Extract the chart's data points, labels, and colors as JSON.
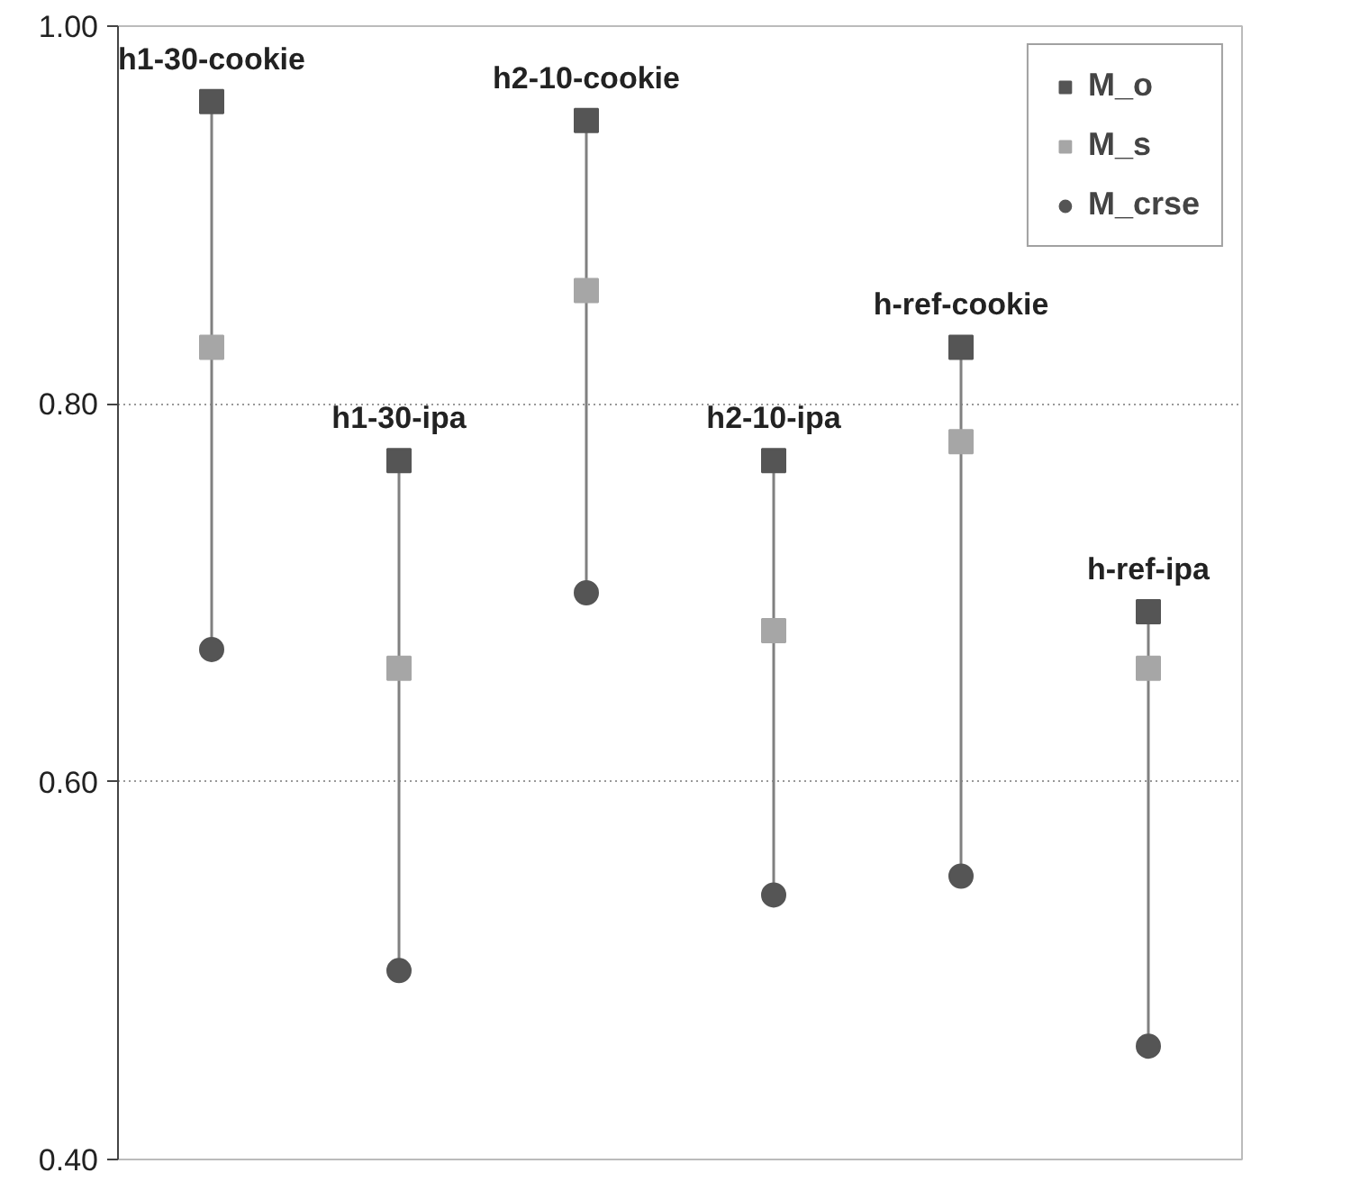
{
  "chart_data": {
    "type": "scatter",
    "categories": [
      "h1-30-cookie",
      "h1-30-ipa",
      "h2-10-cookie",
      "h2-10-ipa",
      "h-ref-cookie",
      "h-ref-ipa"
    ],
    "series": [
      {
        "name": "M_o",
        "color": "#555555",
        "marker": "square",
        "values": [
          0.96,
          0.77,
          0.95,
          0.77,
          0.83,
          0.69
        ]
      },
      {
        "name": "M_s",
        "color": "#a6a6a6",
        "marker": "square",
        "values": [
          0.83,
          0.66,
          0.86,
          0.68,
          0.78,
          0.66
        ]
      },
      {
        "name": "M_crse",
        "color": "#555555",
        "marker": "circle",
        "values": [
          0.67,
          0.5,
          0.7,
          0.54,
          0.55,
          0.46
        ]
      }
    ],
    "ylim": [
      0.4,
      1.0
    ],
    "yticks": [
      {
        "value": 0.4,
        "label": "0.40"
      },
      {
        "value": 0.6,
        "label": "0.60"
      },
      {
        "value": 0.8,
        "label": "0.80"
      },
      {
        "value": 1.0,
        "label": "1.00"
      }
    ],
    "grid": "y",
    "legend": "top right",
    "tick_labels": "y"
  }
}
